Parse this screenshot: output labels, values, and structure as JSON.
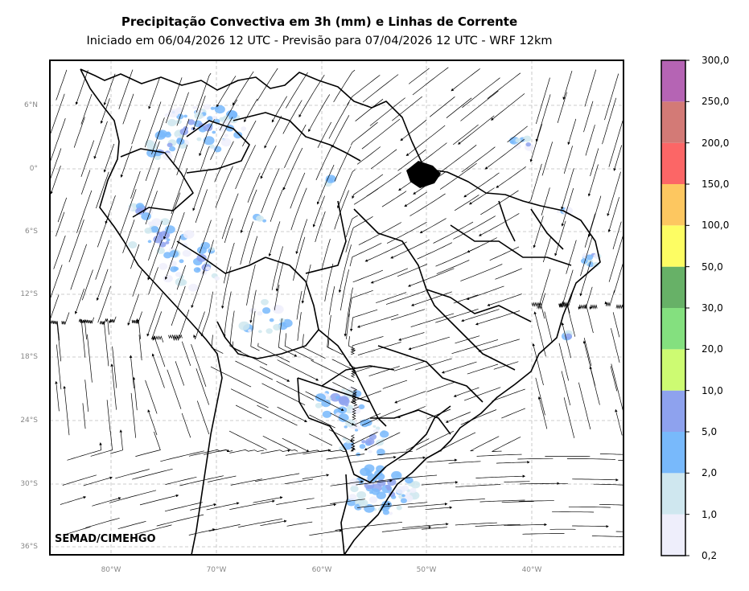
{
  "title": "Precipitação Convectiva em 3h (mm) e Linhas de Corrente",
  "subtitle": "Iniciado em 06/04/2026 12 UTC - Previsão para 07/04/2026 12 UTC - WRF 12km",
  "credit": "SEMAD/CIMEHGO",
  "lat_labels": [
    "6°N",
    "0°",
    "6°S",
    "12°S",
    "18°S",
    "24°S",
    "30°S",
    "36°S"
  ],
  "lon_labels": [
    "80°W",
    "70°W",
    "60°W",
    "50°W",
    "40°W"
  ],
  "colorbar": {
    "labels": [
      "0,2",
      "1,0",
      "2,0",
      "5,0",
      "10,0",
      "20,0",
      "30,0",
      "50,0",
      "100,0",
      "150,0",
      "200,0",
      "250,0",
      "300,0"
    ],
    "colors": [
      "#eeeefb",
      "#cfe7ef",
      "#78b9fb",
      "#8ea2ee",
      "#cdfb72",
      "#84e07f",
      "#67b167",
      "#fdfd63",
      "#fdc760",
      "#fc6666",
      "#d37a76",
      "#b564b4"
    ]
  }
}
